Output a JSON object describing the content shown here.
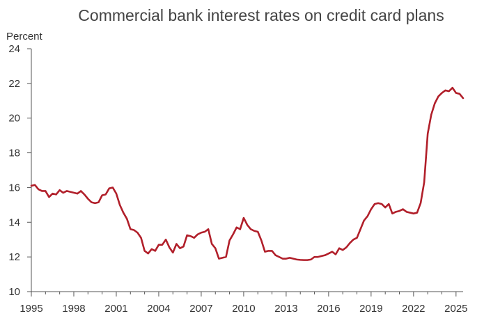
{
  "chart_data": {
    "type": "line",
    "title": "Commercial bank interest rates on credit card plans",
    "ylabel": "Percent",
    "xlabel": "",
    "xlim": [
      1995,
      2025.5
    ],
    "ylim": [
      10,
      24
    ],
    "xticks": [
      1995,
      1998,
      2001,
      2004,
      2007,
      2010,
      2013,
      2016,
      2019,
      2022,
      2025
    ],
    "yticks": [
      10,
      12,
      14,
      16,
      18,
      20,
      22,
      24
    ],
    "grid": false,
    "color": "#b11f2a",
    "series": [
      {
        "points": [
          [
            1995.0,
            16.1
          ],
          [
            1995.25,
            16.15
          ],
          [
            1995.5,
            15.9
          ],
          [
            1995.75,
            15.8
          ],
          [
            1996.0,
            15.8
          ],
          [
            1996.25,
            15.45
          ],
          [
            1996.5,
            15.65
          ],
          [
            1996.75,
            15.6
          ],
          [
            1997.0,
            15.85
          ],
          [
            1997.25,
            15.7
          ],
          [
            1997.5,
            15.8
          ],
          [
            1997.75,
            15.75
          ],
          [
            1998.0,
            15.7
          ],
          [
            1998.25,
            15.65
          ],
          [
            1998.5,
            15.8
          ],
          [
            1998.75,
            15.6
          ],
          [
            1999.0,
            15.35
          ],
          [
            1999.25,
            15.15
          ],
          [
            1999.5,
            15.1
          ],
          [
            1999.75,
            15.15
          ],
          [
            2000.0,
            15.55
          ],
          [
            2000.25,
            15.6
          ],
          [
            2000.5,
            15.95
          ],
          [
            2000.75,
            16.0
          ],
          [
            2001.0,
            15.65
          ],
          [
            2001.25,
            15.0
          ],
          [
            2001.5,
            14.55
          ],
          [
            2001.75,
            14.2
          ],
          [
            2002.0,
            13.6
          ],
          [
            2002.25,
            13.55
          ],
          [
            2002.5,
            13.4
          ],
          [
            2002.75,
            13.1
          ],
          [
            2003.0,
            12.35
          ],
          [
            2003.25,
            12.2
          ],
          [
            2003.5,
            12.45
          ],
          [
            2003.75,
            12.35
          ],
          [
            2004.0,
            12.7
          ],
          [
            2004.25,
            12.7
          ],
          [
            2004.5,
            13.0
          ],
          [
            2004.75,
            12.55
          ],
          [
            2005.0,
            12.25
          ],
          [
            2005.25,
            12.75
          ],
          [
            2005.5,
            12.5
          ],
          [
            2005.75,
            12.6
          ],
          [
            2006.0,
            13.25
          ],
          [
            2006.25,
            13.2
          ],
          [
            2006.5,
            13.1
          ],
          [
            2006.75,
            13.3
          ],
          [
            2007.0,
            13.4
          ],
          [
            2007.25,
            13.45
          ],
          [
            2007.5,
            13.6
          ],
          [
            2007.75,
            12.75
          ],
          [
            2008.0,
            12.5
          ],
          [
            2008.25,
            11.9
          ],
          [
            2008.5,
            11.95
          ],
          [
            2008.75,
            12.0
          ],
          [
            2009.0,
            12.95
          ],
          [
            2009.25,
            13.3
          ],
          [
            2009.5,
            13.7
          ],
          [
            2009.75,
            13.6
          ],
          [
            2010.0,
            14.25
          ],
          [
            2010.25,
            13.85
          ],
          [
            2010.5,
            13.6
          ],
          [
            2010.75,
            13.5
          ],
          [
            2011.0,
            13.45
          ],
          [
            2011.25,
            12.95
          ],
          [
            2011.5,
            12.3
          ],
          [
            2011.75,
            12.35
          ],
          [
            2012.0,
            12.35
          ],
          [
            2012.25,
            12.1
          ],
          [
            2012.5,
            12.0
          ],
          [
            2012.75,
            11.9
          ],
          [
            2013.0,
            11.9
          ],
          [
            2013.25,
            11.95
          ],
          [
            2013.5,
            11.9
          ],
          [
            2013.75,
            11.85
          ],
          [
            2014.0,
            11.83
          ],
          [
            2014.25,
            11.82
          ],
          [
            2014.5,
            11.82
          ],
          [
            2014.75,
            11.85
          ],
          [
            2015.0,
            12.0
          ],
          [
            2015.25,
            12.0
          ],
          [
            2015.5,
            12.05
          ],
          [
            2015.75,
            12.1
          ],
          [
            2016.0,
            12.2
          ],
          [
            2016.25,
            12.3
          ],
          [
            2016.5,
            12.15
          ],
          [
            2016.75,
            12.5
          ],
          [
            2017.0,
            12.4
          ],
          [
            2017.25,
            12.55
          ],
          [
            2017.5,
            12.8
          ],
          [
            2017.75,
            13.0
          ],
          [
            2018.0,
            13.1
          ],
          [
            2018.25,
            13.6
          ],
          [
            2018.5,
            14.1
          ],
          [
            2018.75,
            14.35
          ],
          [
            2019.0,
            14.75
          ],
          [
            2019.25,
            15.05
          ],
          [
            2019.5,
            15.1
          ],
          [
            2019.75,
            15.05
          ],
          [
            2020.0,
            14.85
          ],
          [
            2020.25,
            15.05
          ],
          [
            2020.5,
            14.5
          ],
          [
            2020.75,
            14.6
          ],
          [
            2021.0,
            14.65
          ],
          [
            2021.25,
            14.75
          ],
          [
            2021.5,
            14.6
          ],
          [
            2021.75,
            14.55
          ],
          [
            2022.0,
            14.5
          ],
          [
            2022.25,
            14.55
          ],
          [
            2022.5,
            15.1
          ],
          [
            2022.75,
            16.3
          ],
          [
            2023.0,
            19.1
          ],
          [
            2023.25,
            20.2
          ],
          [
            2023.5,
            20.85
          ],
          [
            2023.75,
            21.25
          ],
          [
            2024.0,
            21.45
          ],
          [
            2024.25,
            21.6
          ],
          [
            2024.5,
            21.55
          ],
          [
            2024.75,
            21.75
          ],
          [
            2025.0,
            21.45
          ],
          [
            2025.25,
            21.4
          ],
          [
            2025.5,
            21.15
          ]
        ]
      }
    ]
  }
}
